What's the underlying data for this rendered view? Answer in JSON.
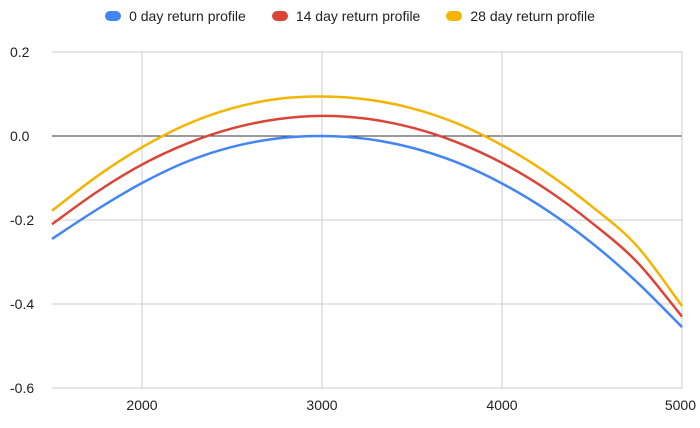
{
  "chart_data": {
    "type": "line",
    "title": "",
    "xlabel": "",
    "ylabel": "",
    "xlim": [
      1500,
      5000
    ],
    "ylim": [
      -0.6,
      0.2
    ],
    "x_ticks": [
      "2000",
      "3000",
      "4000",
      "5000"
    ],
    "y_ticks": [
      "0.2",
      "0.0",
      "-0.2",
      "-0.4",
      "-0.6"
    ],
    "grid": true,
    "legend_position": "top",
    "x": [
      1500,
      1750,
      2000,
      2250,
      2500,
      2750,
      3000,
      3250,
      3500,
      3750,
      4000,
      4250,
      4500,
      4750,
      5000
    ],
    "series": [
      {
        "name": "0 day return profile",
        "color": "#4285F4",
        "values": [
          -0.245,
          -0.175,
          -0.112,
          -0.061,
          -0.026,
          -0.006,
          0.0,
          -0.007,
          -0.028,
          -0.063,
          -0.113,
          -0.177,
          -0.255,
          -0.348,
          -0.455
        ]
      },
      {
        "name": "14 day return profile",
        "color": "#DB4437",
        "values": [
          -0.21,
          -0.133,
          -0.068,
          -0.018,
          0.018,
          0.04,
          0.048,
          0.041,
          0.02,
          -0.015,
          -0.064,
          -0.128,
          -0.207,
          -0.3,
          -0.43
        ]
      },
      {
        "name": "28 day return profile",
        "color": "#F4B400",
        "values": [
          -0.178,
          -0.096,
          -0.027,
          0.028,
          0.066,
          0.088,
          0.094,
          0.087,
          0.066,
          0.03,
          -0.022,
          -0.088,
          -0.168,
          -0.262,
          -0.405
        ]
      }
    ]
  }
}
